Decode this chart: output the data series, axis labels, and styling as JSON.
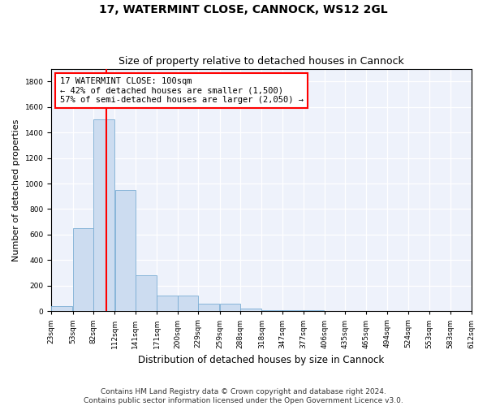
{
  "title1": "17, WATERMINT CLOSE, CANNOCK, WS12 2GL",
  "title2": "Size of property relative to detached houses in Cannock",
  "xlabel": "Distribution of detached houses by size in Cannock",
  "ylabel": "Number of detached properties",
  "bar_color": "#ccdcf0",
  "bar_edge_color": "#7aadd4",
  "vline_x": 100,
  "vline_color": "red",
  "annotation_lines": [
    "17 WATERMINT CLOSE: 100sqm",
    "← 42% of detached houses are smaller (1,500)",
    "57% of semi-detached houses are larger (2,050) →"
  ],
  "annotation_box_color": "white",
  "annotation_box_edge": "red",
  "bins": [
    23,
    53,
    82,
    112,
    141,
    171,
    200,
    229,
    259,
    288,
    318,
    347,
    377,
    406,
    435,
    465,
    494,
    524,
    553,
    583,
    612
  ],
  "bar_heights": [
    40,
    650,
    1500,
    950,
    280,
    120,
    120,
    60,
    60,
    20,
    10,
    5,
    5,
    3,
    2,
    2,
    1,
    1,
    1,
    1
  ],
  "ylim": [
    0,
    1900
  ],
  "yticks": [
    0,
    200,
    400,
    600,
    800,
    1000,
    1200,
    1400,
    1600,
    1800
  ],
  "footer1": "Contains HM Land Registry data © Crown copyright and database right 2024.",
  "footer2": "Contains public sector information licensed under the Open Government Licence v3.0.",
  "bg_color": "#eef2fb",
  "title1_fontsize": 10,
  "title2_fontsize": 9,
  "ylabel_fontsize": 8,
  "xlabel_fontsize": 8.5,
  "tick_fontsize": 6.5,
  "footer_fontsize": 6.5,
  "ann_fontsize": 7.5
}
